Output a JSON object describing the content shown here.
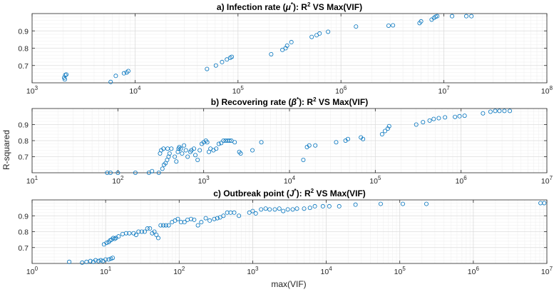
{
  "figure": {
    "ylabel": "R-squared",
    "xlabel": "max(VIF)"
  },
  "chart_data": [
    {
      "type": "scatter",
      "title": "a) Infection rate (μ*): R² VS Max(VIF)",
      "title_parts": {
        "prefix": "a) Infection rate (",
        "symbol": "μ",
        "star": "*",
        "middle": "): R",
        "power": "2",
        "suffix": " VS Max(VIF)"
      },
      "xscale": "log",
      "xlim": [
        1000,
        100000000
      ],
      "ylim": [
        0.6,
        1.0
      ],
      "xticks": [
        {
          "v": 1000,
          "e": "3"
        },
        {
          "v": 10000,
          "e": "4"
        },
        {
          "v": 100000,
          "e": "5"
        },
        {
          "v": 1000000,
          "e": "6"
        },
        {
          "v": 10000000,
          "e": "7"
        },
        {
          "v": 100000000,
          "e": "8"
        }
      ],
      "yticks": [
        0.7,
        0.8,
        0.9
      ],
      "yticklabels": [
        "0.7",
        "0.8",
        "0.9"
      ],
      "grid": true,
      "marker_color": "#0072BD",
      "points": [
        [
          2050,
          0.63
        ],
        [
          2100,
          0.645
        ],
        [
          2150,
          0.648
        ],
        [
          2080,
          0.62
        ],
        [
          5800,
          0.605
        ],
        [
          6500,
          0.64
        ],
        [
          7800,
          0.655
        ],
        [
          8300,
          0.66
        ],
        [
          8600,
          0.668
        ],
        [
          50000,
          0.68
        ],
        [
          61000,
          0.7
        ],
        [
          70000,
          0.72
        ],
        [
          78000,
          0.735
        ],
        [
          84000,
          0.745
        ],
        [
          87000,
          0.75
        ],
        [
          210000,
          0.765
        ],
        [
          270000,
          0.79
        ],
        [
          290000,
          0.8
        ],
        [
          300000,
          0.815
        ],
        [
          330000,
          0.835
        ],
        [
          520000,
          0.865
        ],
        [
          580000,
          0.875
        ],
        [
          620000,
          0.885
        ],
        [
          750000,
          0.895
        ],
        [
          1400000,
          0.925
        ],
        [
          2900000,
          0.93
        ],
        [
          3200000,
          0.932
        ],
        [
          5800000,
          0.945
        ],
        [
          6000000,
          0.955
        ],
        [
          7600000,
          0.965
        ],
        [
          8000000,
          0.975
        ],
        [
          8300000,
          0.982
        ],
        [
          8600000,
          0.985
        ],
        [
          12000000,
          0.985
        ],
        [
          16500000,
          0.985
        ],
        [
          18500000,
          0.985
        ]
      ]
    },
    {
      "type": "scatter",
      "title": "b) Recovering rate (β*): R² VS Max(VIF)",
      "title_parts": {
        "prefix": "b) Recovering rate (",
        "symbol": "β",
        "star": "*",
        "middle": "): R",
        "power": "2",
        "suffix": " VS Max(VIF)"
      },
      "xscale": "log",
      "xlim": [
        10,
        10000000
      ],
      "ylim": [
        0.6,
        1.0
      ],
      "xticks": [
        {
          "v": 10,
          "e": "1"
        },
        {
          "v": 100,
          "e": "2"
        },
        {
          "v": 1000,
          "e": "3"
        },
        {
          "v": 10000,
          "e": "4"
        },
        {
          "v": 100000,
          "e": "5"
        },
        {
          "v": 1000000,
          "e": "6"
        },
        {
          "v": 10000000,
          "e": "7"
        }
      ],
      "yticks": [
        0.7,
        0.8,
        0.9
      ],
      "yticklabels": [
        "0.7",
        "0.8",
        "0.9"
      ],
      "grid": true,
      "marker_color": "#0072BD",
      "points": [
        [
          75,
          0.6
        ],
        [
          82,
          0.6
        ],
        [
          100,
          0.6
        ],
        [
          160,
          0.6
        ],
        [
          230,
          0.6
        ],
        [
          250,
          0.61
        ],
        [
          300,
          0.6
        ],
        [
          330,
          0.625
        ],
        [
          345,
          0.65
        ],
        [
          360,
          0.66
        ],
        [
          375,
          0.68
        ],
        [
          390,
          0.7
        ],
        [
          310,
          0.72
        ],
        [
          320,
          0.74
        ],
        [
          340,
          0.75
        ],
        [
          380,
          0.75
        ],
        [
          420,
          0.75
        ],
        [
          400,
          0.72
        ],
        [
          460,
          0.7
        ],
        [
          480,
          0.67
        ],
        [
          500,
          0.73
        ],
        [
          510,
          0.75
        ],
        [
          520,
          0.76
        ],
        [
          540,
          0.75
        ],
        [
          560,
          0.72
        ],
        [
          590,
          0.77
        ],
        [
          620,
          0.74
        ],
        [
          650,
          0.7
        ],
        [
          700,
          0.73
        ],
        [
          720,
          0.74
        ],
        [
          770,
          0.75
        ],
        [
          800,
          0.71
        ],
        [
          850,
          0.68
        ],
        [
          900,
          0.74
        ],
        [
          950,
          0.78
        ],
        [
          1000,
          0.79
        ],
        [
          1060,
          0.8
        ],
        [
          1100,
          0.79
        ],
        [
          1150,
          0.73
        ],
        [
          1200,
          0.75
        ],
        [
          1300,
          0.74
        ],
        [
          1400,
          0.75
        ],
        [
          1500,
          0.78
        ],
        [
          1600,
          0.785
        ],
        [
          1700,
          0.8
        ],
        [
          1800,
          0.8
        ],
        [
          1900,
          0.8
        ],
        [
          2000,
          0.8
        ],
        [
          2100,
          0.8
        ],
        [
          2300,
          0.79
        ],
        [
          2600,
          0.73
        ],
        [
          2700,
          0.72
        ],
        [
          3700,
          0.74
        ],
        [
          4700,
          0.79
        ],
        [
          14500,
          0.68
        ],
        [
          16000,
          0.76
        ],
        [
          17000,
          0.77
        ],
        [
          20000,
          0.77
        ],
        [
          35000,
          0.79
        ],
        [
          45000,
          0.8
        ],
        [
          48000,
          0.81
        ],
        [
          68000,
          0.82
        ],
        [
          72000,
          0.81
        ],
        [
          120000,
          0.84
        ],
        [
          130000,
          0.86
        ],
        [
          140000,
          0.875
        ],
        [
          145000,
          0.89
        ],
        [
          300000,
          0.9
        ],
        [
          360000,
          0.915
        ],
        [
          430000,
          0.925
        ],
        [
          480000,
          0.935
        ],
        [
          550000,
          0.94
        ],
        [
          650000,
          0.945
        ],
        [
          850000,
          0.948
        ],
        [
          960000,
          0.952
        ],
        [
          1100000,
          0.955
        ],
        [
          1800000,
          0.97
        ],
        [
          2200000,
          0.98
        ],
        [
          2500000,
          0.985
        ],
        [
          2800000,
          0.985
        ],
        [
          3200000,
          0.985
        ],
        [
          3700000,
          0.985
        ]
      ]
    },
    {
      "type": "scatter",
      "title": "c) Outbreak point (J*): R² VS Max(VIF)",
      "title_parts": {
        "prefix": "c) Outbreak point (",
        "symbol": "J",
        "star": "*",
        "middle": "): R",
        "power": "2",
        "suffix": " VS Max(VIF)"
      },
      "xscale": "log",
      "xlim": [
        1,
        10000000
      ],
      "ylim": [
        0.6,
        1.0
      ],
      "xticks": [
        {
          "v": 1,
          "e": "0"
        },
        {
          "v": 10,
          "e": "1"
        },
        {
          "v": 100,
          "e": "2"
        },
        {
          "v": 1000,
          "e": "3"
        },
        {
          "v": 10000,
          "e": "4"
        },
        {
          "v": 100000,
          "e": "5"
        },
        {
          "v": 1000000,
          "e": "6"
        },
        {
          "v": 10000000,
          "e": "7"
        }
      ],
      "yticks": [
        0.7,
        0.8,
        0.9
      ],
      "yticklabels": [
        "0.7",
        "0.8",
        "0.9"
      ],
      "grid": true,
      "marker_color": "#0072BD",
      "points": [
        [
          3.2,
          0.61
        ],
        [
          4.8,
          0.605
        ],
        [
          5.5,
          0.61
        ],
        [
          6.2,
          0.615
        ],
        [
          6.8,
          0.61
        ],
        [
          7.3,
          0.62
        ],
        [
          8,
          0.615
        ],
        [
          8.6,
          0.62
        ],
        [
          9.2,
          0.615
        ],
        [
          10,
          0.625
        ],
        [
          11,
          0.625
        ],
        [
          11.8,
          0.63
        ],
        [
          12.5,
          0.635
        ],
        [
          9.5,
          0.72
        ],
        [
          10.3,
          0.73
        ],
        [
          11,
          0.735
        ],
        [
          11.5,
          0.745
        ],
        [
          12,
          0.75
        ],
        [
          12.7,
          0.76
        ],
        [
          13.3,
          0.755
        ],
        [
          13.8,
          0.76
        ],
        [
          15,
          0.77
        ],
        [
          17,
          0.785
        ],
        [
          19,
          0.79
        ],
        [
          21,
          0.79
        ],
        [
          24,
          0.79
        ],
        [
          26,
          0.78
        ],
        [
          28,
          0.8
        ],
        [
          31,
          0.8
        ],
        [
          34,
          0.8
        ],
        [
          37,
          0.82
        ],
        [
          40,
          0.82
        ],
        [
          43,
          0.79
        ],
        [
          46,
          0.8
        ],
        [
          49,
          0.78
        ],
        [
          52,
          0.76
        ],
        [
          56,
          0.84
        ],
        [
          61,
          0.84
        ],
        [
          66,
          0.84
        ],
        [
          72,
          0.84
        ],
        [
          80,
          0.86
        ],
        [
          88,
          0.87
        ],
        [
          96,
          0.88
        ],
        [
          106,
          0.86
        ],
        [
          118,
          0.86
        ],
        [
          130,
          0.875
        ],
        [
          145,
          0.88
        ],
        [
          160,
          0.875
        ],
        [
          180,
          0.84
        ],
        [
          200,
          0.86
        ],
        [
          230,
          0.885
        ],
        [
          260,
          0.87
        ],
        [
          300,
          0.88
        ],
        [
          330,
          0.885
        ],
        [
          360,
          0.89
        ],
        [
          400,
          0.9
        ],
        [
          450,
          0.92
        ],
        [
          500,
          0.92
        ],
        [
          560,
          0.92
        ],
        [
          650,
          0.9
        ],
        [
          900,
          0.92
        ],
        [
          1000,
          0.93
        ],
        [
          1100,
          0.915
        ],
        [
          1300,
          0.94
        ],
        [
          1500,
          0.945
        ],
        [
          1700,
          0.94
        ],
        [
          2000,
          0.94
        ],
        [
          2300,
          0.945
        ],
        [
          2600,
          0.93
        ],
        [
          3000,
          0.94
        ],
        [
          3500,
          0.94
        ],
        [
          4000,
          0.945
        ],
        [
          5000,
          0.945
        ],
        [
          6000,
          0.95
        ],
        [
          7000,
          0.96
        ],
        [
          9000,
          0.96
        ],
        [
          11000,
          0.96
        ],
        [
          15000,
          0.96
        ],
        [
          25000,
          0.97
        ],
        [
          55000,
          0.975
        ],
        [
          110000,
          0.975
        ],
        [
          230000,
          0.975
        ],
        [
          8200000,
          0.98
        ],
        [
          9200000,
          0.98
        ]
      ]
    }
  ]
}
